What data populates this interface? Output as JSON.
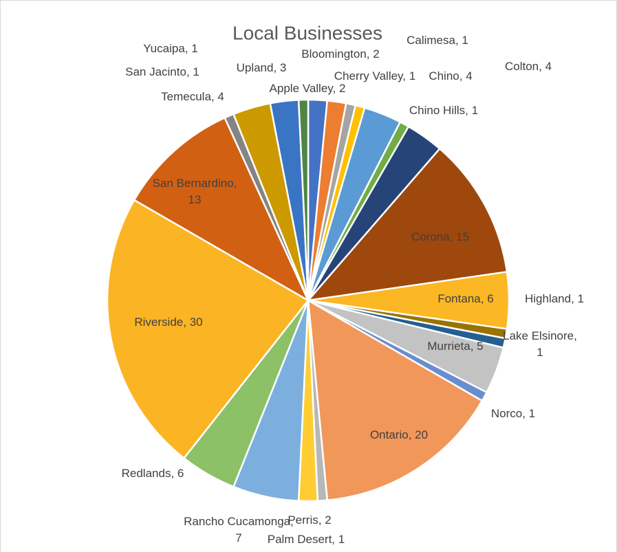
{
  "chart_data": {
    "type": "pie",
    "title": "Local Businesses",
    "categories": [
      "Apple Valley",
      "Bloomington",
      "Calimesa",
      "Cherry Valley",
      "Chino",
      "Chino Hills",
      "Colton",
      "Corona",
      "Fontana",
      "Highland",
      "Lake Elsinore",
      "Murrieta",
      "Norco",
      "Ontario",
      "Palm Desert",
      "Perris",
      "Rancho Cucamonga",
      "Redlands",
      "Riverside",
      "San Bernardino",
      "San Jacinto",
      "Temecula",
      "Upland",
      "Yucaipa"
    ],
    "values": [
      2,
      2,
      1,
      1,
      4,
      1,
      4,
      15,
      6,
      1,
      1,
      5,
      1,
      20,
      1,
      2,
      7,
      6,
      30,
      13,
      1,
      4,
      3,
      1
    ],
    "colors": [
      "#4472c4",
      "#ed7d31",
      "#a5a5a5",
      "#ffc000",
      "#5b9bd5",
      "#70ad47",
      "#264478",
      "#9e480e",
      "#fbb724",
      "#997300",
      "#255e91",
      "#c3c3c3",
      "#698ed0",
      "#f1975a",
      "#b7b7b7",
      "#ffcd33",
      "#7cafdd",
      "#8cc168",
      "#fbb424",
      "#d26012",
      "#848484",
      "#cc9a00",
      "#3a75c4",
      "#4e8542"
    ]
  }
}
